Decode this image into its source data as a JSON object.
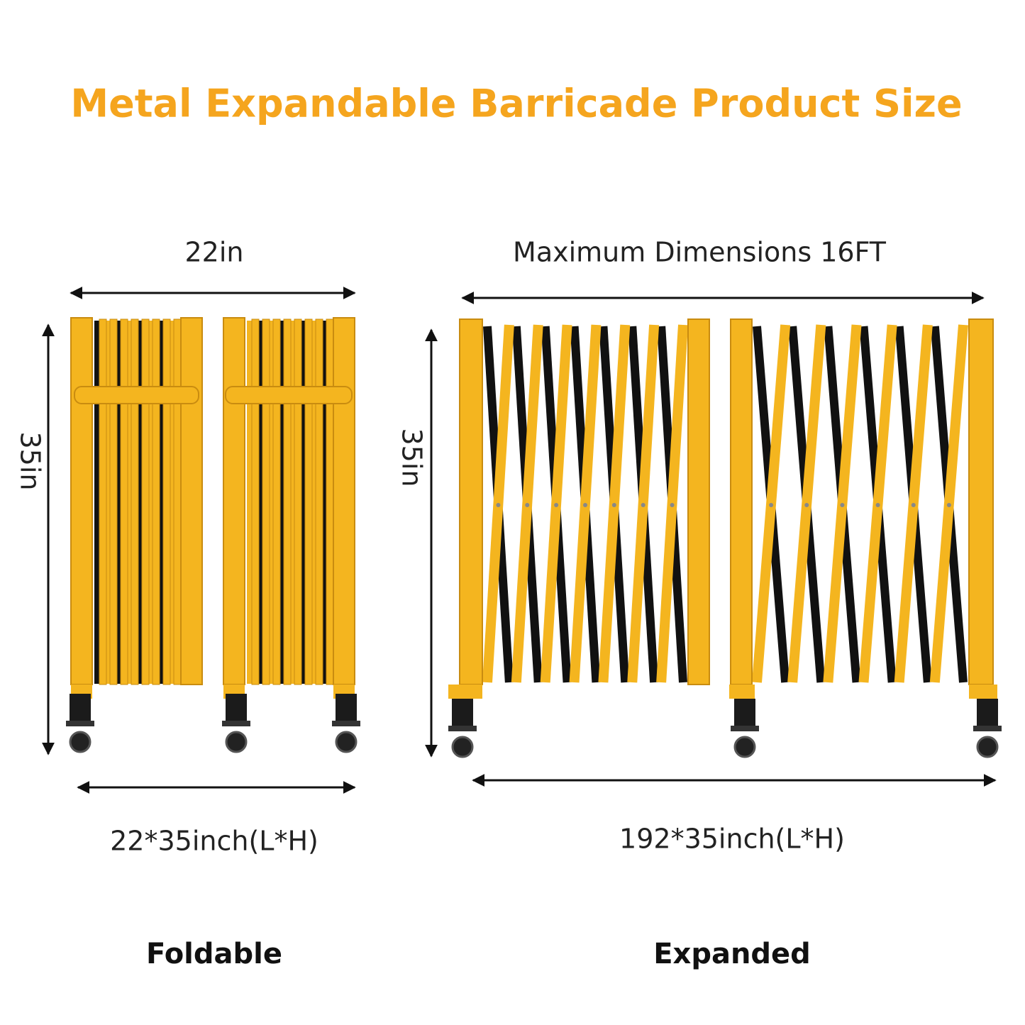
{
  "title": "Metal Expandable Barricade Product Size",
  "foldable": {
    "width_label": "22in",
    "height_label": "35in",
    "size": "22*35inch(L*H)",
    "caption": "Foldable"
  },
  "expanded": {
    "width_label": "Maximum Dimensions 16FT",
    "height_label": "35in",
    "size": "192*35inch(L*H)",
    "caption": "Expanded"
  }
}
